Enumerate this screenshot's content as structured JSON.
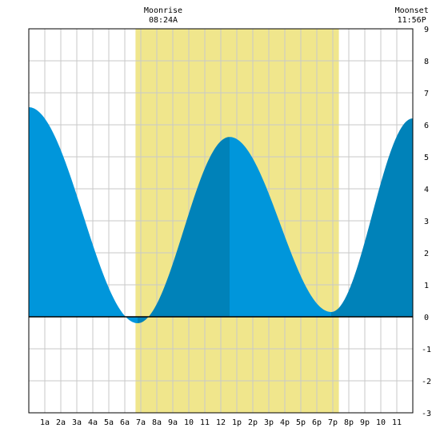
{
  "chart_data": {
    "type": "area",
    "x_unit": "hour",
    "xlim": [
      0,
      24
    ],
    "ylim": [
      -3,
      9
    ],
    "grid": true,
    "x_tick_labels": [
      "1a",
      "2a",
      "3a",
      "4a",
      "5a",
      "6a",
      "7a",
      "8a",
      "9a",
      "10",
      "11",
      "12",
      "1p",
      "2p",
      "3p",
      "4p",
      "5p",
      "6p",
      "7p",
      "8p",
      "9p",
      "10",
      "11"
    ],
    "y_tick_labels": [
      "-3",
      "-2",
      "-1",
      "0",
      "1",
      "2",
      "3",
      "4",
      "5",
      "6",
      "7",
      "8",
      "9"
    ],
    "moon_events": [
      {
        "label": "Moonrise",
        "time": "08:24A"
      },
      {
        "label": "Moonset",
        "time": "11:56P"
      }
    ],
    "daylight_band": {
      "start_hour": 6.67,
      "end_hour": 19.38
    },
    "tide_extremes": [
      {
        "hour": 0.0,
        "height": 6.55
      },
      {
        "hour": 6.8,
        "height": -0.2
      },
      {
        "hour": 12.55,
        "height": 5.62
      },
      {
        "hour": 18.9,
        "height": 0.15
      },
      {
        "hour": 24.0,
        "height": 6.2
      }
    ],
    "colors": {
      "daylight": "#f0e68c",
      "tide_light": "#0096db",
      "tide_dark": "#0082b9",
      "grid": "#c8c8c8",
      "baseline": "#000000"
    }
  }
}
